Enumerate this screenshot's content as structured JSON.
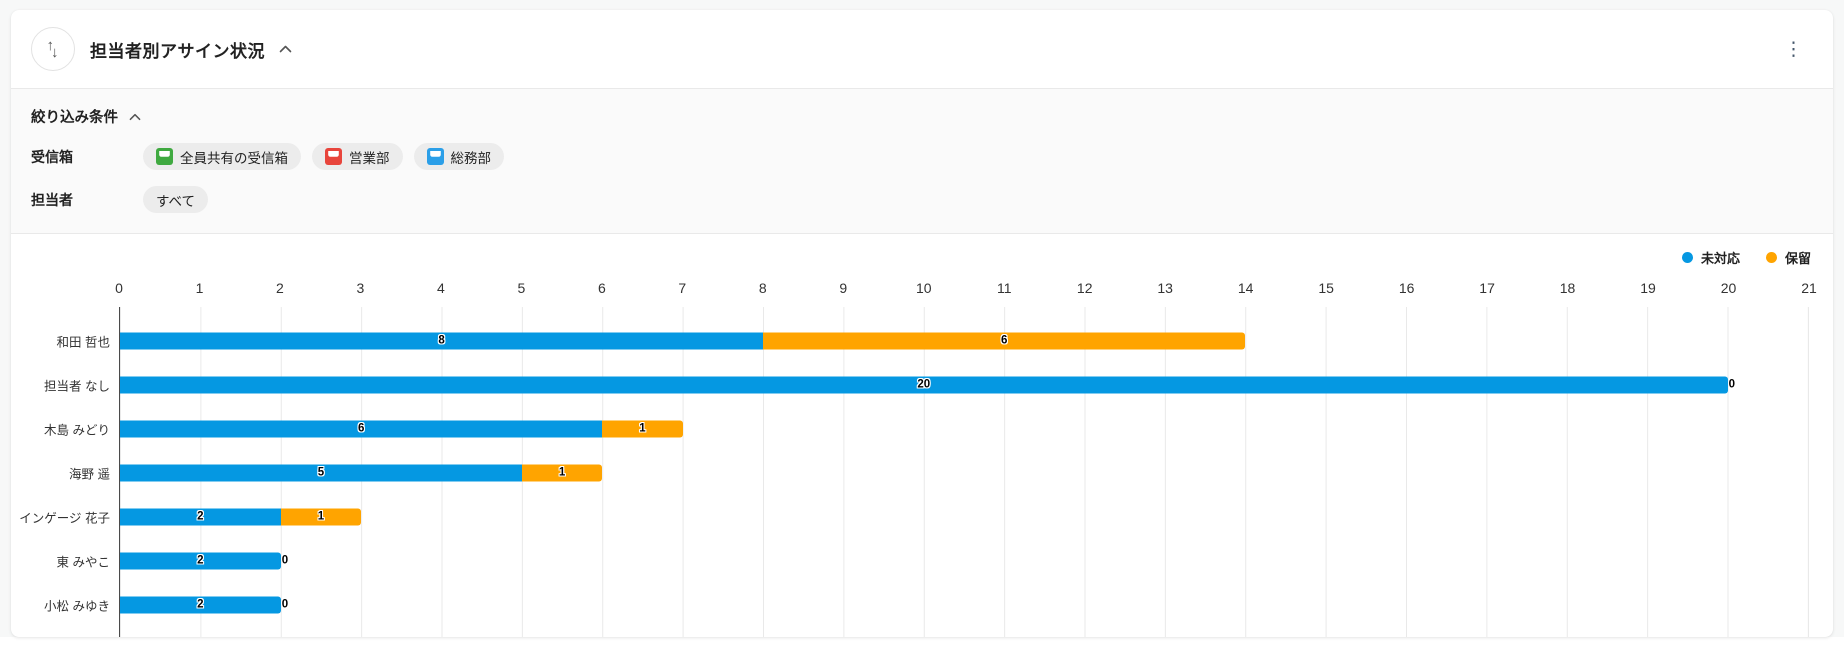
{
  "widget": {
    "title": "担当者別アサイン状況"
  },
  "filters": {
    "title": "絞り込み条件",
    "rows": [
      {
        "label": "受信箱",
        "chips": [
          {
            "text": "全員共有の受信箱",
            "icon": "inbox-icon",
            "icon_color": "#3FA940"
          },
          {
            "text": "営業部",
            "icon": "inbox-icon",
            "icon_color": "#E8453C"
          },
          {
            "text": "総務部",
            "icon": "inbox-icon",
            "icon_color": "#2B9FE8"
          }
        ]
      },
      {
        "label": "担当者",
        "chips": [
          {
            "text": "すべて"
          }
        ]
      }
    ]
  },
  "chart_data": {
    "type": "bar",
    "orientation": "horizontal",
    "stacked": true,
    "grid": true,
    "legend_position": "top-right",
    "xlim": [
      0,
      21
    ],
    "tick_step": 1,
    "categories": [
      "和田 哲也",
      "担当者 なし",
      "木島 みどり",
      "海野 遥",
      "インゲージ 花子",
      "東 みやこ",
      "小松 みゆき"
    ],
    "series": [
      {
        "name": "未対応",
        "color": "#0598E2",
        "values": [
          8,
          20,
          6,
          5,
          2,
          2,
          2
        ]
      },
      {
        "name": "保留",
        "color": "#FFA400",
        "values": [
          6,
          0,
          1,
          1,
          1,
          0,
          0
        ]
      }
    ]
  }
}
